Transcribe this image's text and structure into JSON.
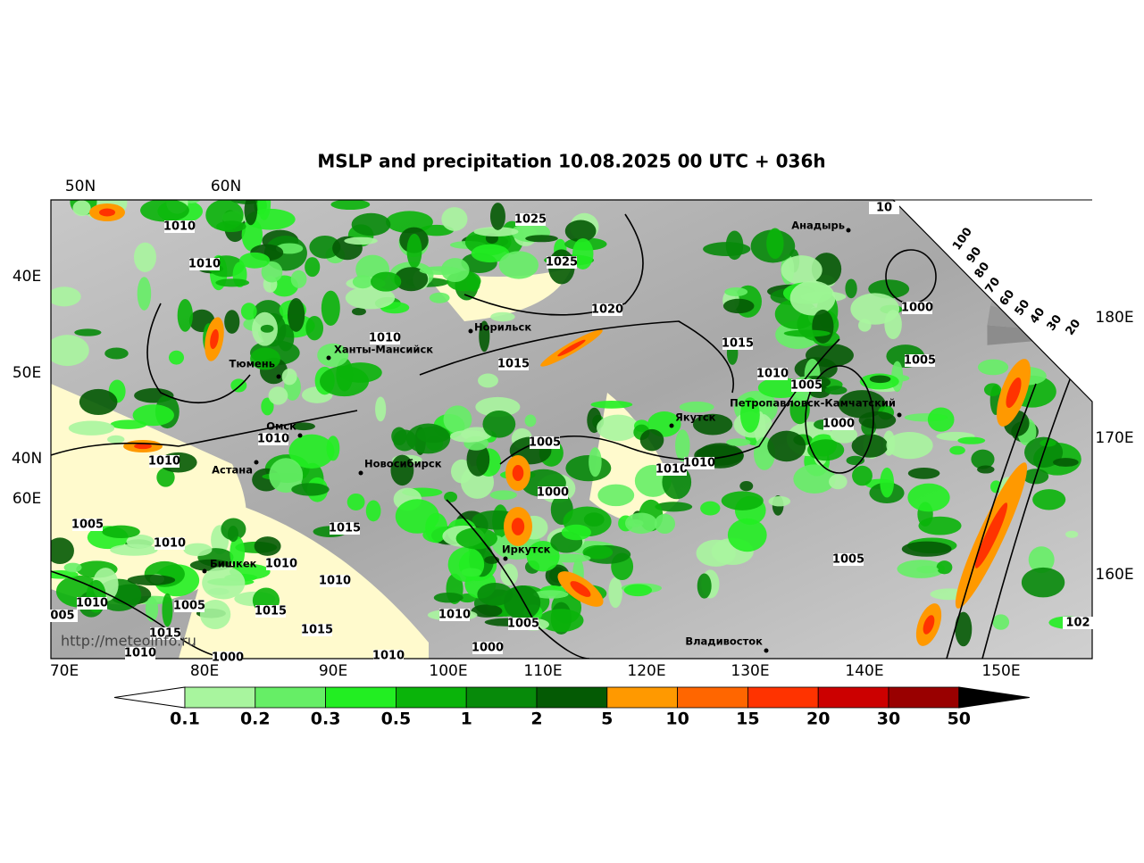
{
  "title": "MSLP and precipitation 10.08.2025 00 UTC + 036h",
  "axis_labels": {
    "top": [
      "50N",
      "60N"
    ],
    "left": [
      "40E",
      "50E",
      "40N",
      "60E"
    ],
    "bottom": [
      "70E",
      "80E",
      "90E",
      "100E",
      "110E",
      "120E",
      "130E",
      "140E",
      "150E"
    ],
    "right": [
      "180E",
      "170E",
      "160E"
    ]
  },
  "cloud_scale": [
    "100",
    "90",
    "80",
    "70",
    "60",
    "50",
    "40",
    "30",
    "20"
  ],
  "isobar_labels": [
    "1010",
    "1010",
    "1025",
    "1025",
    "1020",
    "1010",
    "1015",
    "1015",
    "1010",
    "1005",
    "1000",
    "1005",
    "1000",
    "1010",
    "1010",
    "1005",
    "1010",
    "1010",
    "1000",
    "1005",
    "1010",
    "1015",
    "1010",
    "1010",
    "1005",
    "1010",
    "1005",
    "1015",
    "1015",
    "1010",
    "1005",
    "1000",
    "1015",
    "1010",
    "1000",
    "1010",
    "005",
    "102",
    "10"
  ],
  "cities": [
    "Норильск",
    "Ханты-Мансийск",
    "Тюмень",
    "Омск",
    "Астана",
    "Новосибирск",
    "Бишкек",
    "Иркутск",
    "Якутск",
    "Анадырь",
    "Петропавловск-Камчатский",
    "Владивосток"
  ],
  "watermark": "http://meteoinfo.ru",
  "colorbar": {
    "levels": [
      0.1,
      0.2,
      0.3,
      0.5,
      1,
      2,
      5,
      10,
      15,
      20,
      30,
      50
    ],
    "colors": [
      "#a8f59e",
      "#66ee66",
      "#22ee22",
      "#0ab40a",
      "#078a0a",
      "#045a04",
      "#ff9900",
      "#ff6600",
      "#ff3300",
      "#cc0000",
      "#990000"
    ],
    "under_color": "#ffffff",
    "over_color": "#000000"
  }
}
